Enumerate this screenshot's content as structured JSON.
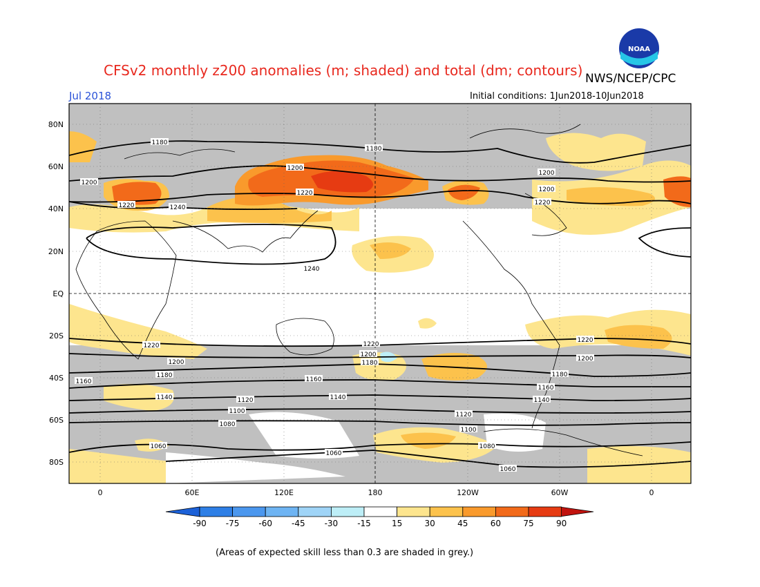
{
  "title": "CFSv2 monthly z200 anomalies (m; shaded) and total (dm; contours)",
  "agency": "NWS/NCEP/CPC",
  "logo_text": "NOAA",
  "valid_month": "Jul 2018",
  "initial_conditions": "Initial conditions: 1Jun2018-10Jun2018",
  "skill_note": "(Areas of expected skill less than 0.3 are shaded in grey.)",
  "axes": {
    "lat_labels": [
      "80N",
      "60N",
      "40N",
      "20N",
      "EQ",
      "20S",
      "40S",
      "60S",
      "80S"
    ],
    "lon_labels": [
      "0",
      "60E",
      "120E",
      "180",
      "120W",
      "60W",
      "0"
    ]
  },
  "colorbar": {
    "ticks": [
      "-90",
      "-75",
      "-60",
      "-45",
      "-30",
      "-15",
      "15",
      "30",
      "45",
      "60",
      "75",
      "90"
    ],
    "colors": [
      "#1c61d8",
      "#2e7fe6",
      "#4b97ee",
      "#6eb4f3",
      "#9fd4f7",
      "#bdeef7",
      "#ffffff",
      "#fde58e",
      "#fcc24c",
      "#f99a2c",
      "#f26a1a",
      "#e63b12",
      "#c1130e"
    ]
  },
  "map_colors": {
    "grey": "#c0c0c0",
    "pos15": "#fde58e",
    "pos30": "#fcc24c",
    "pos45": "#f99a2c",
    "pos60": "#f26a1a",
    "pos75": "#e63b12",
    "pos90": "#c1130e",
    "neg15": "#bdeef7"
  },
  "contours": [
    {
      "label": "1180",
      "lat": 70
    },
    {
      "label": "1200",
      "lat": 60
    },
    {
      "label": "1220",
      "lat": 47
    },
    {
      "label": "1240",
      "lat": 40
    },
    {
      "label": "1240",
      "lat": 17
    },
    {
      "label": "1220",
      "lat": -25
    },
    {
      "label": "1200",
      "lat": -32
    },
    {
      "label": "1180",
      "lat": -37
    },
    {
      "label": "1160",
      "lat": -42
    },
    {
      "label": "1140",
      "lat": -49
    },
    {
      "label": "1120",
      "lat": -54
    },
    {
      "label": "1100",
      "lat": -58
    },
    {
      "label": "1080",
      "lat": -63
    },
    {
      "label": "1060",
      "lat": -75
    }
  ]
}
